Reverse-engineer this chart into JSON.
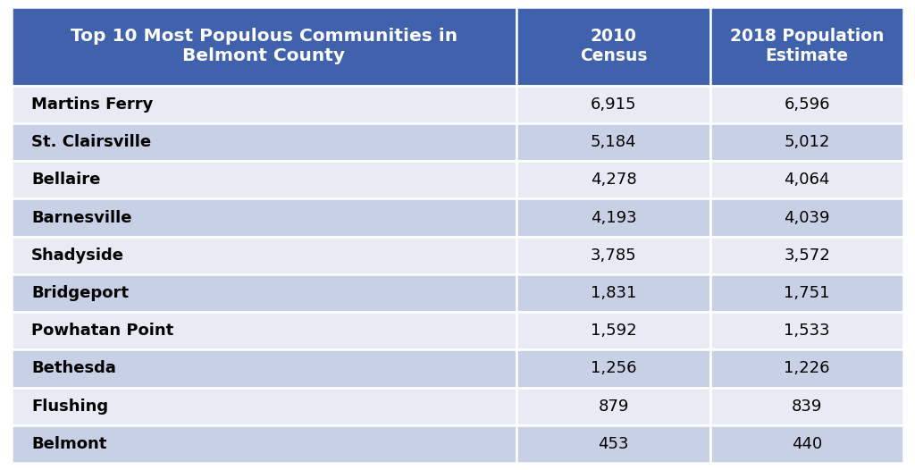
{
  "title": "Top 10 Most Populous Communities in\nBelmont County",
  "col2_header": "2010\nCensus",
  "col3_header": "2018 Population\nEstimate",
  "communities": [
    "Martins Ferry",
    "St. Clairsville",
    "Bellaire",
    "Barnesville",
    "Shadyside",
    "Bridgeport",
    "Powhatan Point",
    "Bethesda",
    "Flushing",
    "Belmont"
  ],
  "census_2010": [
    "6,915",
    "5,184",
    "4,278",
    "4,193",
    "3,785",
    "1,831",
    "1,592",
    "1,256",
    "879",
    "453"
  ],
  "estimate_2018": [
    "6,596",
    "5,012",
    "4,064",
    "4,039",
    "3,572",
    "1,751",
    "1,533",
    "1,226",
    "839",
    "440"
  ],
  "header_bg_color": "#4062AC",
  "header_text_color": "#FFFFFF",
  "row_light_color": "#E8EBF4",
  "row_dark_color": "#C8D0E6",
  "body_text_color": "#000000",
  "border_color": "#FFFFFF",
  "title_fontsize": 14.5,
  "header_fontsize": 13.5,
  "body_fontsize": 13,
  "fig_width": 10.24,
  "fig_height": 5.26,
  "dpi": 100
}
